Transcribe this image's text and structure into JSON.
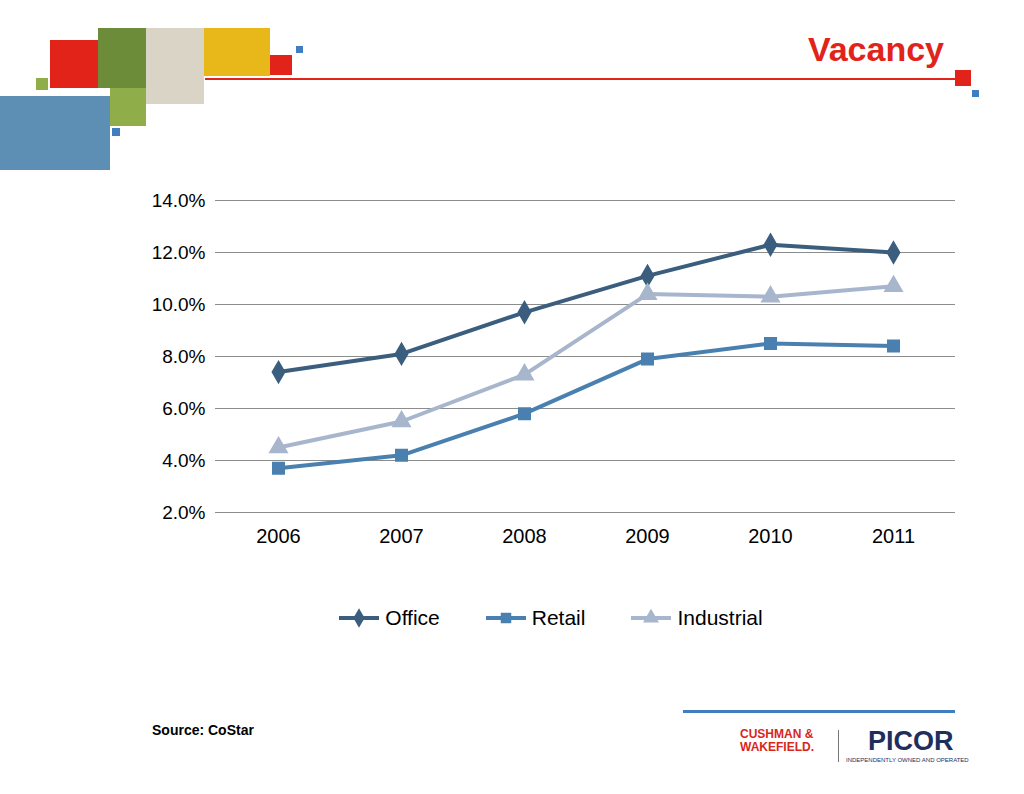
{
  "chart_data": {
    "type": "line",
    "title": "Vacancy",
    "caption": "Source: CoStar",
    "annotations": [
      "CUSHMAN & WAKEFIELD.",
      "PICOR",
      "INDEPENDENTLY OWNED AND OPERATED"
    ],
    "categories": [
      "2006",
      "2007",
      "2008",
      "2009",
      "2010",
      "2011"
    ],
    "series": [
      {
        "name": "Office",
        "color": "#3b5e7e",
        "marker": "diamond",
        "values": [
          7.4,
          8.1,
          9.7,
          11.1,
          12.3,
          12.0
        ]
      },
      {
        "name": "Retail",
        "color": "#4a80b0",
        "marker": "square",
        "values": [
          3.7,
          4.2,
          5.8,
          7.9,
          8.5,
          8.4
        ]
      },
      {
        "name": "Industrial",
        "color": "#a7b6cc",
        "marker": "triangle",
        "values": [
          4.5,
          5.5,
          7.3,
          10.4,
          10.3,
          10.7
        ]
      }
    ],
    "ylim": [
      2,
      14
    ],
    "yticks": [
      {
        "value": 2,
        "label": "2.0%"
      },
      {
        "value": 4,
        "label": "4.0%"
      },
      {
        "value": 6,
        "label": "6.0%"
      },
      {
        "value": 8,
        "label": "8.0%"
      },
      {
        "value": 10,
        "label": "10.0%"
      },
      {
        "value": 12,
        "label": "12.0%"
      },
      {
        "value": 14,
        "label": "14.0%"
      }
    ],
    "grid": true,
    "legend": "bottom"
  }
}
